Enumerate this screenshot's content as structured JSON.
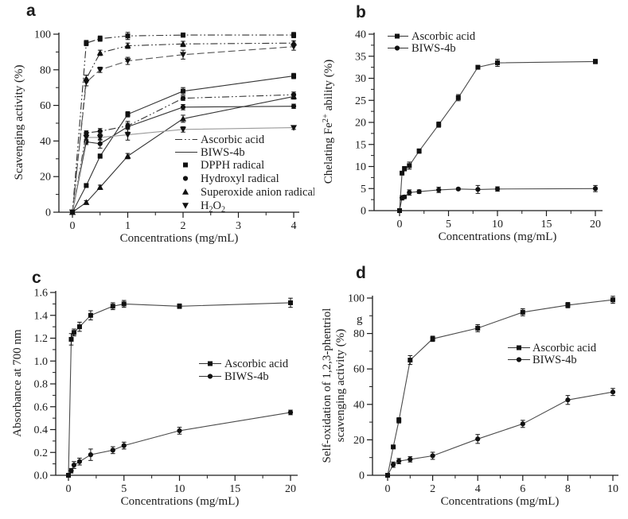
{
  "figure": {
    "background": "#ffffff",
    "ink": "#1c1c1c",
    "marker_color": "#111111",
    "line_color": "#3a3a3a",
    "gray_line_color": "#9a9a9a"
  },
  "chart_data": [
    {
      "panel_label": "a",
      "type": "line",
      "title": "",
      "xlabel": "Concentrations (mg/mL)",
      "ylabel_lines": [
        [
          {
            "t": "Scavenging activity (%)"
          }
        ]
      ],
      "xlim": [
        0,
        4
      ],
      "ylim": [
        0,
        100
      ],
      "grid": false,
      "xticks": [
        0,
        1,
        2,
        3,
        4
      ],
      "xtick_labels": [
        "0",
        "1",
        "2",
        "3",
        "4"
      ],
      "yticks": [
        0,
        20,
        40,
        60,
        80,
        100
      ],
      "ytick_labels": [
        "0",
        "20",
        "40",
        "60",
        "80",
        "100"
      ],
      "x": [
        0,
        0.25,
        0.5,
        1,
        2,
        4
      ],
      "series": [
        {
          "name": "Ascorbic acid - DPPH radical",
          "marker": "square",
          "line": "dashdotdot",
          "color": "#333333",
          "values": [
            0,
            95,
            97.5,
            99,
            99.5,
            99.5
          ],
          "errors": [
            0,
            1.5,
            1.5,
            2,
            1.2,
            1.5
          ]
        },
        {
          "name": "Ascorbic acid - Superoxide anion radical",
          "marker": "triangle-up",
          "line": "dashdotdot",
          "color": "#333333",
          "values": [
            0,
            75,
            89.5,
            93.5,
            94.5,
            95
          ],
          "errors": [
            0,
            2,
            1.5,
            1.5,
            1.5,
            1.2
          ]
        },
        {
          "name": "Ascorbic acid - H2O2",
          "marker": "triangle-down",
          "line": "dash",
          "color": "#555555",
          "values": [
            0,
            73,
            80,
            85,
            88.5,
            93
          ],
          "errors": [
            0,
            2,
            1.5,
            2,
            2.5,
            2
          ]
        },
        {
          "name": "Ascorbic acid - Hydroxyl radical",
          "marker": "circle",
          "line": "dashdotdot",
          "color": "#333333",
          "values": [
            0,
            44.5,
            45.5,
            48.5,
            64,
            66
          ],
          "errors": [
            0,
            1.2,
            1.5,
            1.5,
            1.2,
            1.5
          ]
        },
        {
          "name": "BIWS-4b - DPPH radical",
          "marker": "square",
          "line": "solid",
          "color": "#333333",
          "values": [
            0,
            15,
            31.5,
            55,
            68,
            76.5
          ],
          "errors": [
            0,
            1,
            1.2,
            1.5,
            2,
            1.5
          ]
        },
        {
          "name": "BIWS-4b - Hydroxyl radical",
          "marker": "circle",
          "line": "solid",
          "color": "#333333",
          "values": [
            0,
            39.5,
            38.5,
            48,
            59,
            59.5
          ],
          "errors": [
            0,
            1.5,
            2.5,
            3,
            1.5,
            1.2
          ]
        },
        {
          "name": "BIWS-4b - Superoxide anion radical",
          "marker": "triangle-up",
          "line": "solid",
          "color": "#333333",
          "values": [
            0,
            5.5,
            14,
            31.5,
            52.5,
            65
          ],
          "errors": [
            0,
            1,
            1.2,
            1.5,
            2,
            1.5
          ]
        },
        {
          "name": "BIWS-4b - H2O2",
          "marker": "triangle-down",
          "line": "solid",
          "color": "#9a9a9a",
          "values": [
            0,
            42,
            42,
            43.5,
            46.5,
            47.5
          ],
          "errors": [
            0,
            1.5,
            1.5,
            3,
            1.5,
            1
          ]
        }
      ],
      "legend": {
        "position": "inside-right-middle",
        "entries": [
          {
            "sample": "line",
            "line": "dashdotdot",
            "label": "Ascorbic acid"
          },
          {
            "sample": "line",
            "line": "solid",
            "label": "BIWS-4b"
          },
          {
            "sample": "marker",
            "marker": "square",
            "label": "DPPH radical"
          },
          {
            "sample": "marker",
            "marker": "circle",
            "label": "Hydroxyl radical"
          },
          {
            "sample": "marker",
            "marker": "triangle-up",
            "label": "Superoxide anion radical"
          },
          {
            "sample": "marker",
            "marker": "triangle-down",
            "label": [
              {
                "t": "H"
              },
              {
                "t": "2",
                "sub": true
              },
              {
                "t": "O"
              },
              {
                "t": "2",
                "sub": true
              }
            ]
          }
        ]
      }
    },
    {
      "panel_label": "b",
      "type": "line",
      "title": "",
      "xlabel": "Concentrations (mg/mL)",
      "ylabel_lines": [
        [
          {
            "t": "Chelating Fe"
          },
          {
            "t": "2+",
            "sup": true
          },
          {
            "t": " ability (%)"
          }
        ]
      ],
      "xlim": [
        0,
        20
      ],
      "ylim": [
        0,
        40
      ],
      "grid": false,
      "xticks": [
        0,
        5,
        10,
        15,
        20
      ],
      "xtick_labels": [
        "0",
        "5",
        "10",
        "15",
        "20"
      ],
      "yticks": [
        0,
        5,
        10,
        15,
        20,
        25,
        30,
        35,
        40
      ],
      "ytick_labels": [
        "0",
        "5",
        "10",
        "15",
        "20",
        "25",
        "30",
        "35",
        "40"
      ],
      "x": [
        0,
        0.25,
        0.5,
        1,
        2,
        4,
        6,
        8,
        10,
        20
      ],
      "series": [
        {
          "name": "Ascorbic acid",
          "marker": "square",
          "line": "solid",
          "color": "#4a4a4a",
          "values": [
            0,
            8.5,
            9.5,
            10.2,
            13.5,
            19.5,
            25.6,
            32.5,
            33.5,
            33.8
          ],
          "errors": [
            0,
            0.4,
            0.5,
            0.8,
            0.5,
            0.6,
            0.7,
            0.4,
            0.8,
            0.5
          ]
        },
        {
          "name": "BIWS-4b",
          "marker": "circle",
          "line": "solid",
          "color": "#4a4a4a",
          "values": [
            0,
            2.9,
            3.1,
            4.1,
            4.3,
            4.7,
            4.9,
            4.8,
            4.9,
            5.0
          ],
          "errors": [
            0,
            0.5,
            0.4,
            0.6,
            0.4,
            0.6,
            0.2,
            0.9,
            0.5,
            0.7
          ]
        }
      ],
      "legend": {
        "position": "inside-top-left",
        "entries": [
          {
            "sample": "line+marker",
            "line": "solid",
            "marker": "square",
            "label": "Ascorbic acid"
          },
          {
            "sample": "line+marker",
            "line": "solid",
            "marker": "circle",
            "label": "BIWS-4b"
          }
        ]
      }
    },
    {
      "panel_label": "c",
      "type": "line",
      "title": "",
      "xlabel": "Concentrations (mg/mL)",
      "ylabel_lines": [
        [
          {
            "t": "Absorbance at 700 nm"
          }
        ]
      ],
      "xlim": [
        0,
        20
      ],
      "ylim": [
        0,
        1.6
      ],
      "grid": false,
      "xticks": [
        0,
        5,
        10,
        15,
        20
      ],
      "xtick_labels": [
        "0",
        "5",
        "10",
        "15",
        "20"
      ],
      "yticks": [
        0,
        0.2,
        0.4,
        0.6,
        0.8,
        1.0,
        1.2,
        1.4,
        1.6
      ],
      "ytick_labels": [
        "0.0",
        "0.2",
        "0.4",
        "0.6",
        "0.8",
        "1.0",
        "1.2",
        "1.4",
        "1.6"
      ],
      "x": [
        0,
        0.25,
        0.5,
        1,
        2,
        4,
        5,
        10,
        20
      ],
      "series": [
        {
          "name": "Ascorbic acid",
          "marker": "square",
          "line": "solid",
          "color": "#4a4a4a",
          "values": [
            0,
            1.19,
            1.25,
            1.3,
            1.4,
            1.48,
            1.5,
            1.48,
            1.51
          ],
          "errors": [
            0,
            0.05,
            0.03,
            0.04,
            0.04,
            0.03,
            0.03,
            0.02,
            0.04
          ]
        },
        {
          "name": "BIWS-4b",
          "marker": "circle",
          "line": "solid",
          "color": "#4a4a4a",
          "values": [
            0,
            0.04,
            0.09,
            0.12,
            0.18,
            0.22,
            0.26,
            0.39,
            0.55
          ],
          "errors": [
            0,
            0.02,
            0.03,
            0.03,
            0.05,
            0.03,
            0.03,
            0.03,
            0.02
          ]
        }
      ],
      "legend": {
        "position": "inside-right-middle",
        "entries": [
          {
            "sample": "line+marker",
            "line": "solid",
            "marker": "square",
            "label": "Ascorbic acid"
          },
          {
            "sample": "line+marker",
            "line": "solid",
            "marker": "circle",
            "label": "BIWS-4b"
          }
        ]
      }
    },
    {
      "panel_label": "d",
      "type": "line",
      "title": "",
      "xlabel": "Concentrations (mg/mL)",
      "ylabel_lines": [
        [
          {
            "t": "Self-oxidation of 1,2,3-phentriol"
          }
        ],
        [
          {
            "t": "scavenging activity (%)"
          }
        ]
      ],
      "annotation": {
        "text": "g"
      },
      "xlim": [
        0,
        10
      ],
      "ylim": [
        0,
        100
      ],
      "grid": false,
      "xticks": [
        0,
        2,
        4,
        6,
        8,
        10
      ],
      "xtick_labels": [
        "0",
        "2",
        "4",
        "6",
        "8",
        "10"
      ],
      "yticks": [
        0,
        20,
        40,
        60,
        80,
        100
      ],
      "ytick_labels": [
        "0",
        "20",
        "40",
        "60",
        "80",
        "100"
      ],
      "x": [
        0,
        0.25,
        0.5,
        1,
        2,
        4,
        6,
        8,
        10
      ],
      "series": [
        {
          "name": "Ascorbic acid",
          "marker": "square",
          "line": "solid",
          "color": "#4a4a4a",
          "values": [
            0,
            16,
            31,
            65,
            77,
            83,
            92,
            96,
            99
          ],
          "errors": [
            0,
            1,
            1.5,
            2.5,
            1.5,
            2,
            2,
            1.5,
            2
          ]
        },
        {
          "name": "BIWS-4b",
          "marker": "circle",
          "line": "solid",
          "color": "#4a4a4a",
          "values": [
            0,
            6,
            8,
            9,
            11,
            20.5,
            29,
            42.5,
            47
          ],
          "errors": [
            0,
            1.5,
            1.5,
            1.5,
            2,
            2.5,
            2,
            2.5,
            2
          ]
        }
      ],
      "legend": {
        "position": "inside-right-middle",
        "entries": [
          {
            "sample": "line+marker",
            "line": "solid",
            "marker": "square",
            "label": "Ascorbic acid"
          },
          {
            "sample": "line+marker",
            "line": "solid",
            "marker": "circle",
            "label": "BIWS-4b"
          }
        ]
      }
    }
  ]
}
